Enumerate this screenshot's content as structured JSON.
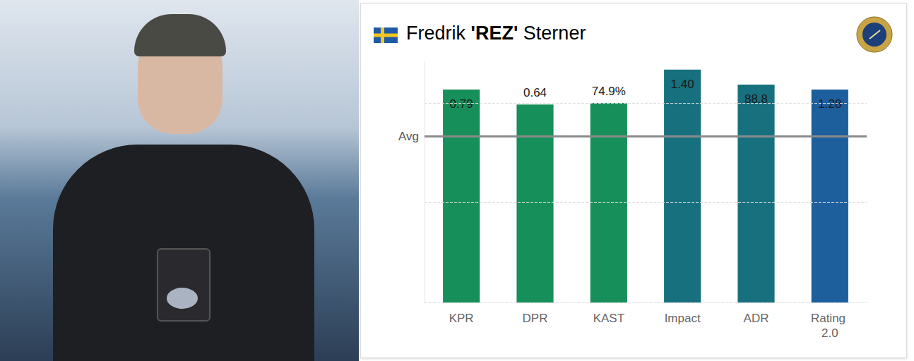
{
  "chart_data": {
    "type": "bar",
    "title": "Fredrik 'REZ' Sterner",
    "categories": [
      "KPR",
      "DPR",
      "KAST",
      "Impact",
      "ADR",
      "Rating 2.0"
    ],
    "values": [
      1.28,
      1.19,
      1.2,
      1.4,
      1.31,
      1.28
    ],
    "stat_labels": [
      "0.79",
      "0.64",
      "74.9%",
      "1.40",
      "88.8",
      "1.28"
    ],
    "colors": [
      "#178f5a",
      "#178f5a",
      "#178f5a",
      "#17707e",
      "#17707e",
      "#1c5f9c"
    ],
    "reference_line": {
      "value": 1,
      "label": "Avg"
    },
    "ylim": [
      0,
      1.45
    ],
    "yticks": [
      0,
      0.6,
      1.2
    ],
    "grid": true,
    "tick_labels": "x"
  }
}
